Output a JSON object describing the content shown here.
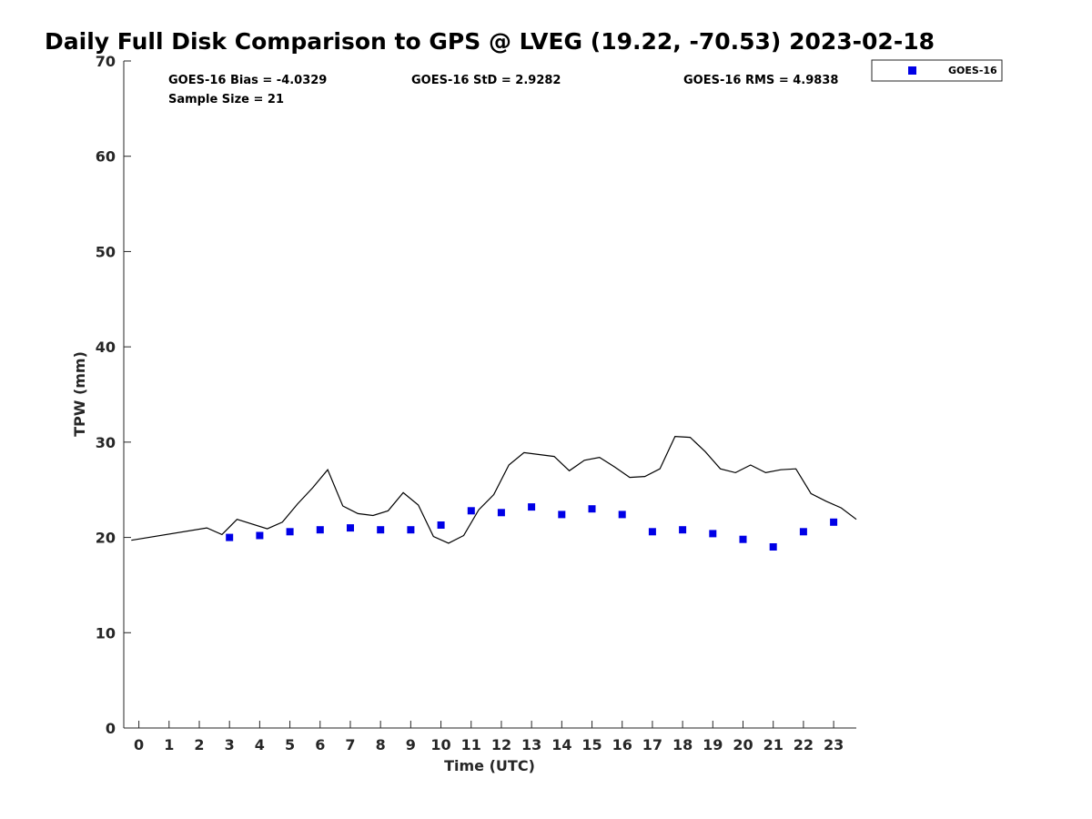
{
  "chart_data": {
    "type": "scatter",
    "title": "Daily Full Disk Comparison to GPS @ LVEG (19.22, -70.53) 2023-02-18",
    "xlabel": "Time (UTC)",
    "ylabel": "TPW (mm)",
    "xlim": [
      -0.5,
      23.75
    ],
    "ylim": [
      0,
      70
    ],
    "x_ticks": [
      0,
      1,
      2,
      3,
      4,
      5,
      6,
      7,
      8,
      9,
      10,
      11,
      12,
      13,
      14,
      15,
      16,
      17,
      18,
      19,
      20,
      21,
      22,
      23
    ],
    "y_ticks": [
      0,
      10,
      20,
      30,
      40,
      50,
      60,
      70
    ],
    "grid": false,
    "legend_position": "top-right outside",
    "stats": {
      "bias": "GOES-16 Bias = -4.0329",
      "std": "GOES-16 StD = 2.9282",
      "rms": "GOES-16 RMS = 4.9838",
      "sample": "Sample Size = 21"
    },
    "series": [
      {
        "name": "GOES-16",
        "kind": "scatter",
        "color": "#0000e6",
        "x": [
          3,
          4,
          5,
          6,
          7,
          8,
          9,
          10,
          11,
          12,
          13,
          14,
          15,
          16,
          17,
          18,
          19,
          20,
          21,
          22,
          23
        ],
        "y": [
          20.0,
          20.2,
          20.6,
          20.8,
          21.0,
          20.8,
          20.8,
          21.3,
          22.8,
          22.6,
          23.2,
          22.4,
          23.0,
          22.4,
          20.6,
          20.8,
          20.4,
          19.8,
          19.0,
          20.6,
          21.6
        ]
      },
      {
        "kind": "line",
        "color": "#000000",
        "x": [
          -0.25,
          2.25,
          2.75,
          3.25,
          4.25,
          4.75,
          5.25,
          5.75,
          6.25,
          6.75,
          7.25,
          7.75,
          8.25,
          8.75,
          9.25,
          9.75,
          10.25,
          10.75,
          11.25,
          11.75,
          12.25,
          12.75,
          13.75,
          14.25,
          14.75,
          15.25,
          15.75,
          16.25,
          16.75,
          17.25,
          17.75,
          18.25,
          18.75,
          19.25,
          19.75,
          20.25,
          20.75,
          21.25,
          21.75,
          22.25,
          22.75,
          23.25,
          23.75
        ],
        "y": [
          19.7,
          21.0,
          20.3,
          21.9,
          20.9,
          21.6,
          23.5,
          25.2,
          27.1,
          23.3,
          22.5,
          22.3,
          22.8,
          24.7,
          23.4,
          20.1,
          19.4,
          20.2,
          22.9,
          24.5,
          27.6,
          28.9,
          28.5,
          27.0,
          28.1,
          28.4,
          27.4,
          26.3,
          26.4,
          27.2,
          30.6,
          30.5,
          29.0,
          27.2,
          26.8,
          27.6,
          26.8,
          27.1,
          27.2,
          24.6,
          23.8,
          23.1,
          21.9
        ]
      }
    ]
  }
}
